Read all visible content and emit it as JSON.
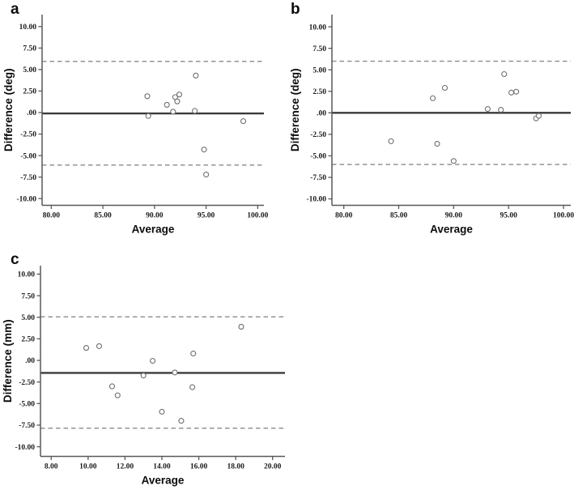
{
  "styles": {
    "background": "#ffffff",
    "axis_color": "#595959",
    "mean_line_color": "#3a3a3a",
    "loa_line_color": "#8a8a8a",
    "point_stroke": "#6e6e6e",
    "point_fill": "#ffffff"
  },
  "chart_data": [
    {
      "type": "scatter",
      "panel_label": "a",
      "xlabel": "Average",
      "ylabel": "Difference (deg)",
      "xlim": [
        79.11,
        100.6
      ],
      "ylim": [
        -10.78,
        11.39
      ],
      "xtick_values": [
        80,
        85,
        90,
        95,
        100
      ],
      "xtick_labels": [
        "80.00",
        "85.00",
        "90.00",
        "95.00",
        "100.00"
      ],
      "ytick_values": [
        10,
        7.5,
        5,
        2.5,
        0,
        -2.5,
        -5,
        -7.5,
        -10
      ],
      "ytick_labels": [
        "10.00",
        "7.50",
        "5.00",
        "2.50",
        ".00",
        "-2.50",
        "-5.00",
        "-7.50",
        "-10.00"
      ],
      "mean_line": -0.1,
      "upper_loa": 5.95,
      "lower_loa": -6.1,
      "points": [
        [
          89.3,
          1.9
        ],
        [
          89.4,
          -0.4
        ],
        [
          91.2,
          0.9
        ],
        [
          91.8,
          0.1
        ],
        [
          92.0,
          1.8
        ],
        [
          92.2,
          1.3
        ],
        [
          92.4,
          2.1
        ],
        [
          93.9,
          0.2
        ],
        [
          94.0,
          4.3
        ],
        [
          94.8,
          -4.3
        ],
        [
          95.0,
          -7.2
        ],
        [
          98.6,
          -1.0
        ]
      ]
    },
    {
      "type": "scatter",
      "panel_label": "b",
      "xlabel": "Average",
      "ylabel": "Difference (deg)",
      "xlim": [
        78.92,
        100.66
      ],
      "ylim": [
        -10.75,
        11.42
      ],
      "xtick_values": [
        80,
        85,
        90,
        95,
        100
      ],
      "xtick_labels": [
        "80.00",
        "85.00",
        "90.00",
        "95.00",
        "100.00"
      ],
      "ytick_values": [
        10,
        7.5,
        5,
        2.5,
        0,
        -2.5,
        -5,
        -7.5,
        -10
      ],
      "ytick_labels": [
        "10.00",
        "7.50",
        "5.00",
        "2.50",
        ".00",
        "-2.50",
        "-5.00",
        "-7.50",
        "-10.00"
      ],
      "mean_line": 0.0,
      "upper_loa": 6.0,
      "lower_loa": -6.0,
      "points": [
        [
          84.3,
          -3.3
        ],
        [
          88.1,
          1.7
        ],
        [
          88.5,
          -3.6
        ],
        [
          89.2,
          2.9
        ],
        [
          90.0,
          -5.6
        ],
        [
          93.1,
          0.45
        ],
        [
          94.3,
          0.35
        ],
        [
          94.6,
          4.5
        ],
        [
          95.25,
          2.35
        ],
        [
          95.7,
          2.45
        ],
        [
          97.5,
          -0.65
        ],
        [
          97.75,
          -0.35
        ]
      ]
    },
    {
      "type": "scatter",
      "panel_label": "c",
      "xlabel": "Average",
      "ylabel": "Difference (mm)",
      "xlim": [
        7.42,
        20.67
      ],
      "ylim": [
        -11.12,
        10.98
      ],
      "xtick_values": [
        8,
        10,
        12,
        14,
        16,
        18,
        20
      ],
      "xtick_labels": [
        "8.00",
        "10.00",
        "12.00",
        "14.00",
        "16.00",
        "18.00",
        "20.00"
      ],
      "ytick_values": [
        10,
        7.5,
        5,
        2.5,
        0,
        -2.5,
        -5,
        -7.5,
        -10
      ],
      "ytick_labels": [
        "10.00",
        "7.50",
        "5.00",
        "2.50",
        ".00",
        "-2.50",
        "-5.00",
        "-7.50",
        "-10.00"
      ],
      "mean_line": -1.45,
      "upper_loa": 5.05,
      "lower_loa": -7.85,
      "points": [
        [
          9.9,
          1.45
        ],
        [
          10.6,
          1.65
        ],
        [
          11.3,
          -3.0
        ],
        [
          11.6,
          -4.05
        ],
        [
          13.0,
          -1.75
        ],
        [
          13.5,
          -0.05
        ],
        [
          14.0,
          -5.95
        ],
        [
          14.7,
          -1.4
        ],
        [
          15.05,
          -7.0
        ],
        [
          15.65,
          -3.1
        ],
        [
          15.7,
          0.8
        ],
        [
          18.3,
          3.9
        ]
      ]
    }
  ]
}
